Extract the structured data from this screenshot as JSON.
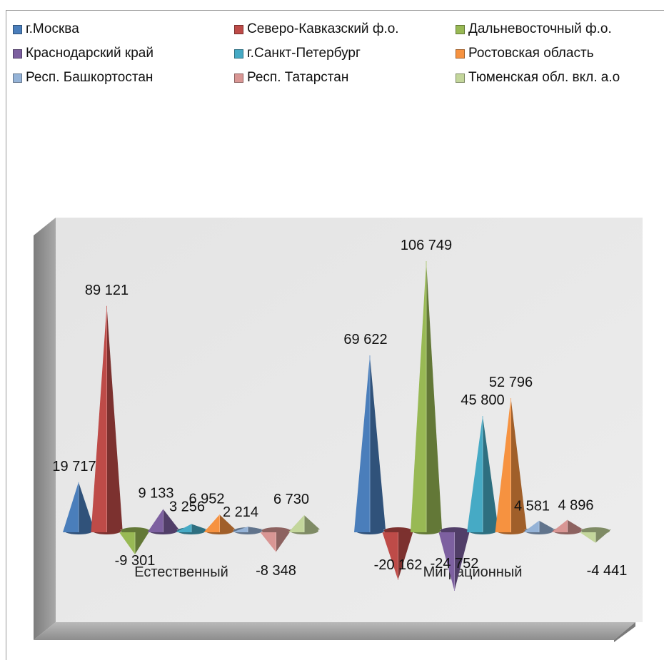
{
  "chart_data": {
    "type": "bar",
    "style": "3d-cone",
    "title": "",
    "xlabel": "",
    "ylabel": "",
    "grid": false,
    "legend_position": "top",
    "categories": [
      "Естественный",
      "Миграционный"
    ],
    "series": [
      {
        "name": "г.Москва",
        "color": "#4a7ebb",
        "values": [
          19717,
          69622
        ],
        "labels": [
          "19 717",
          "69 622"
        ]
      },
      {
        "name": "Северо-Кавказский ф.о.",
        "color": "#be4b48",
        "values": [
          89121,
          -20162
        ],
        "labels": [
          "89 121",
          "-20 162"
        ]
      },
      {
        "name": "Дальневосточный ф.о.",
        "color": "#98b954",
        "values": [
          -9301,
          106749
        ],
        "labels": [
          "-9 301",
          "106 749"
        ]
      },
      {
        "name": "Краснодарский край",
        "color": "#7d60a0",
        "values": [
          9133,
          -24752
        ],
        "labels": [
          "9 133",
          "-24 752"
        ]
      },
      {
        "name": "г.Санкт-Петербург",
        "color": "#46aac5",
        "values": [
          3256,
          45800
        ],
        "labels": [
          "3 256",
          "45 800"
        ]
      },
      {
        "name": "Ростовская область",
        "color": "#f69240",
        "values": [
          6952,
          52796
        ],
        "labels": [
          "6 952",
          "52 796"
        ]
      },
      {
        "name": "Респ. Башкортостан",
        "color": "#95b3d7",
        "values": [
          2214,
          4581
        ],
        "labels": [
          "2 214",
          "4 581"
        ]
      },
      {
        "name": "Респ. Татарстан",
        "color": "#d99694",
        "values": [
          -8348,
          4896
        ],
        "labels": [
          "-8 348",
          "4 896"
        ]
      },
      {
        "name": "Тюменская обл. вкл. а.о",
        "color": "#c3d69b",
        "values": [
          6730,
          -4441
        ],
        "labels": [
          "6 730",
          "-4 441"
        ]
      }
    ]
  }
}
